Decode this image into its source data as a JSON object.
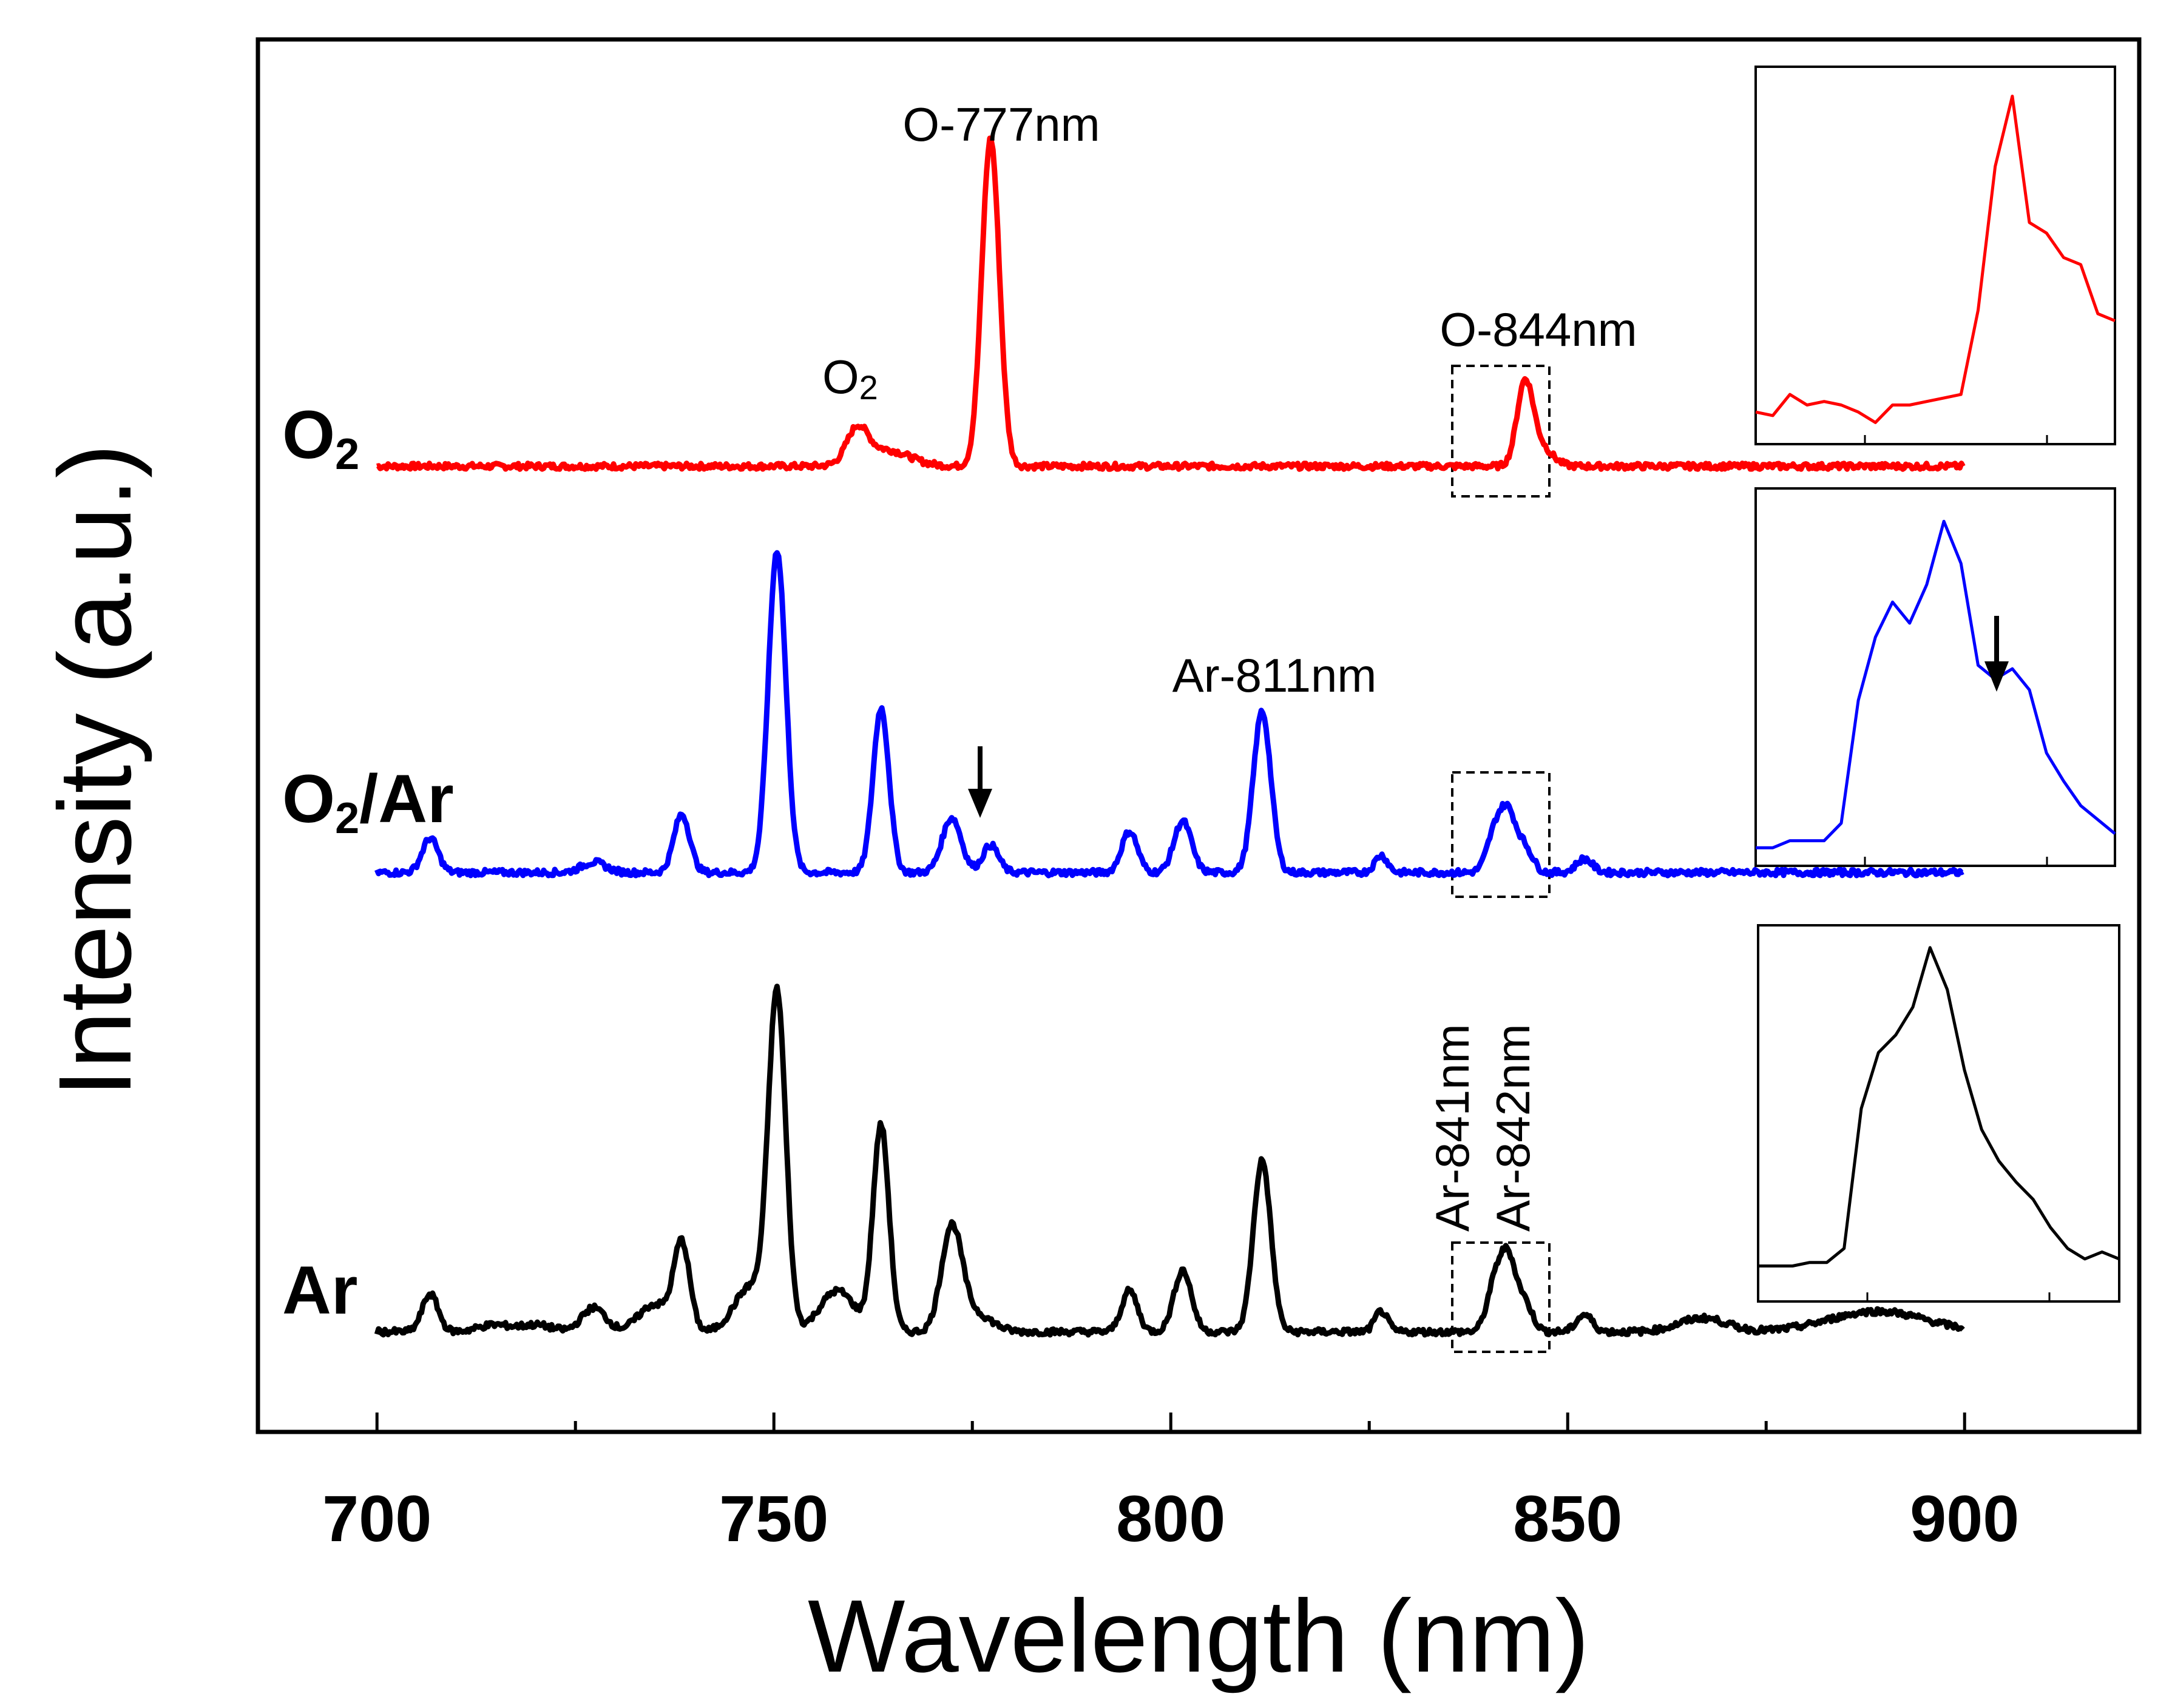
{
  "chart_data": {
    "type": "line",
    "title": "",
    "xlabel": "Wavelength (nm)",
    "ylabel": "Intensity (a.u.)",
    "xlim": [
      685,
      922
    ],
    "x_ticks": [
      700,
      750,
      800,
      850,
      900
    ],
    "x_tick_labels": [
      "700",
      "750",
      "800",
      "850",
      "900"
    ],
    "y_ticks_shown": false,
    "colors": {
      "O2": "#ff0000",
      "O2Ar": "#0000ff",
      "Ar": "#000000"
    },
    "series_labels": {
      "O2": {
        "main": "O",
        "sub": "2",
        "rest": ""
      },
      "O2Ar": {
        "main": "O",
        "sub": "2",
        "rest": "/Ar"
      },
      "Ar": {
        "main": "Ar",
        "sub": "",
        "rest": ""
      }
    },
    "series": [
      {
        "name": "O2",
        "color": "#ff0000",
        "baseline": 0.04,
        "peaks": [
          {
            "x": 760.5,
            "h": 0.1,
            "w": 1.3
          },
          {
            "x": 764.0,
            "h": 0.05,
            "w": 3.0
          },
          {
            "x": 777.3,
            "h": 1.0,
            "w": 1.1
          },
          {
            "x": 844.6,
            "h": 0.24,
            "w": 1.0
          },
          {
            "x": 846.5,
            "h": 0.06,
            "w": 1.5
          }
        ]
      },
      {
        "name": "O2/Ar",
        "color": "#0000ff",
        "baseline": 0.0,
        "peaks": [
          {
            "x": 706.7,
            "h": 0.1,
            "w": 1.0
          },
          {
            "x": 727.3,
            "h": 0.03,
            "w": 1.5
          },
          {
            "x": 738.4,
            "h": 0.17,
            "w": 1.0
          },
          {
            "x": 750.4,
            "h": 0.94,
            "w": 1.1
          },
          {
            "x": 763.5,
            "h": 0.48,
            "w": 1.0
          },
          {
            "x": 772.4,
            "h": 0.16,
            "w": 1.2
          },
          {
            "x": 777.3,
            "h": 0.08,
            "w": 1.0
          },
          {
            "x": 794.8,
            "h": 0.12,
            "w": 1.0
          },
          {
            "x": 801.5,
            "h": 0.15,
            "w": 1.1
          },
          {
            "x": 811.5,
            "h": 0.47,
            "w": 1.1
          },
          {
            "x": 826.5,
            "h": 0.05,
            "w": 0.8
          },
          {
            "x": 840.8,
            "h": 0.11,
            "w": 1.0
          },
          {
            "x": 842.5,
            "h": 0.16,
            "w": 1.0
          },
          {
            "x": 844.6,
            "h": 0.07,
            "w": 1.0
          },
          {
            "x": 852.1,
            "h": 0.04,
            "w": 1.0
          }
        ]
      },
      {
        "name": "Ar",
        "color": "#000000",
        "baseline": 0.0,
        "peaks": [
          {
            "x": 706.7,
            "h": 0.11,
            "w": 1.0
          },
          {
            "x": 714.7,
            "h": 0.02,
            "w": 2.0
          },
          {
            "x": 720.0,
            "h": 0.02,
            "w": 2.0
          },
          {
            "x": 727.3,
            "h": 0.07,
            "w": 1.5
          },
          {
            "x": 735.0,
            "h": 0.08,
            "w": 2.0
          },
          {
            "x": 738.4,
            "h": 0.25,
            "w": 1.0
          },
          {
            "x": 747.0,
            "h": 0.13,
            "w": 2.0
          },
          {
            "x": 750.4,
            "h": 0.97,
            "w": 1.1
          },
          {
            "x": 758.0,
            "h": 0.12,
            "w": 2.2
          },
          {
            "x": 763.5,
            "h": 0.6,
            "w": 1.0
          },
          {
            "x": 772.4,
            "h": 0.3,
            "w": 1.3
          },
          {
            "x": 775.5,
            "h": 0.05,
            "w": 2.0
          },
          {
            "x": 794.8,
            "h": 0.12,
            "w": 1.0
          },
          {
            "x": 801.5,
            "h": 0.18,
            "w": 1.1
          },
          {
            "x": 811.5,
            "h": 0.5,
            "w": 1.1
          },
          {
            "x": 826.5,
            "h": 0.06,
            "w": 0.8
          },
          {
            "x": 840.8,
            "h": 0.13,
            "w": 1.0
          },
          {
            "x": 842.5,
            "h": 0.2,
            "w": 1.0
          },
          {
            "x": 844.6,
            "h": 0.08,
            "w": 1.0
          },
          {
            "x": 852.1,
            "h": 0.05,
            "w": 1.0
          },
          {
            "x": 867.0,
            "h": 0.04,
            "w": 3.0
          },
          {
            "x": 889.0,
            "h": 0.06,
            "w": 6.0
          }
        ]
      }
    ],
    "annotations": {
      "o777": "O-777nm",
      "o2_main": "O",
      "o2_sub": "2",
      "o844": "O-844nm",
      "ar811": "Ar-811nm",
      "ar841": "Ar-841nm",
      "ar842": "Ar-842nm"
    },
    "insets": [
      {
        "name": "O2 zoom (O-844nm)",
        "color": "#ff0000",
        "values": [
          0.07,
          0.06,
          0.12,
          0.09,
          0.1,
          0.09,
          0.07,
          0.04,
          0.09,
          0.09,
          0.1,
          0.11,
          0.12,
          0.36,
          0.77,
          0.97,
          0.61,
          0.58,
          0.51,
          0.49,
          0.35,
          0.33
        ]
      },
      {
        "name": "O2/Ar zoom",
        "color": "#0000ff",
        "values": [
          0.03,
          0.03,
          0.05,
          0.05,
          0.05,
          0.1,
          0.45,
          0.63,
          0.73,
          0.67,
          0.78,
          0.96,
          0.84,
          0.55,
          0.51,
          0.54,
          0.48,
          0.3,
          0.22,
          0.15,
          0.11,
          0.07
        ]
      },
      {
        "name": "Ar zoom",
        "color": "#000000",
        "values": [
          0.08,
          0.08,
          0.08,
          0.09,
          0.09,
          0.13,
          0.53,
          0.69,
          0.74,
          0.82,
          0.99,
          0.87,
          0.64,
          0.47,
          0.38,
          0.32,
          0.27,
          0.19,
          0.13,
          0.1,
          0.12,
          0.1
        ]
      }
    ]
  }
}
